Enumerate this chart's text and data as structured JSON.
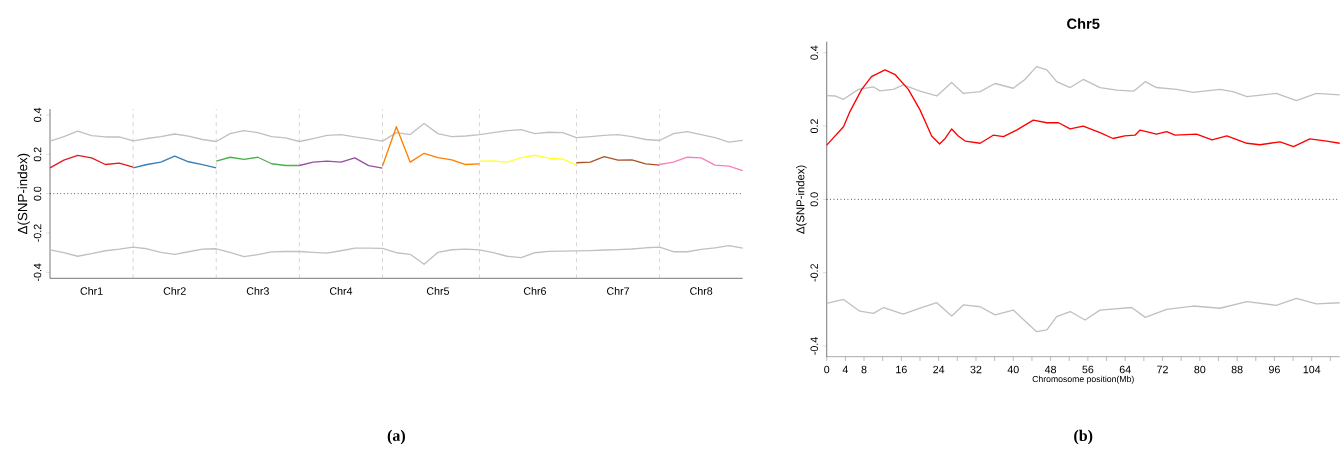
{
  "chart_data": [
    {
      "type": "line",
      "ylabel": "Δ(SNP-index)",
      "ylim": [
        -0.43,
        0.43
      ],
      "categories": [
        null,
        null,
        null,
        "Chr1",
        null,
        null,
        null,
        null,
        null,
        "Chr2",
        null,
        null,
        null,
        null,
        null,
        "Chr3",
        null,
        null,
        null,
        null,
        null,
        "Chr4",
        null,
        null,
        null,
        null,
        null,
        null,
        "Chr5",
        null,
        null,
        null,
        null,
        null,
        null,
        "Chr6",
        null,
        null,
        null,
        null,
        null,
        "Chr7",
        null,
        null,
        null,
        null,
        null,
        "Chr8",
        null,
        null,
        null
      ],
      "yticks": [
        {
          "value": -0.4,
          "label": "-0.4"
        },
        {
          "value": -0.2,
          "label": "-0.2"
        },
        {
          "value": 0,
          "label": "0.0"
        },
        {
          "value": 0.2,
          "label": "0.2"
        },
        {
          "value": 0.4,
          "label": "0.4"
        }
      ],
      "series": [
        {
          "color": "#c0c0c0",
          "values": [
            0.267,
            0.29,
            0.318,
            0.295,
            0.288,
            0.288,
            0.268,
            0.28,
            0.29,
            0.303,
            0.292,
            0.275,
            0.265,
            0.305,
            0.32,
            0.31,
            0.29,
            0.283,
            0.265,
            0.28,
            0.296,
            0.3,
            0.288,
            0.278,
            0.267,
            0.31,
            0.3,
            0.356,
            0.305,
            0.29,
            0.293,
            0.3,
            0.31,
            0.32,
            0.325,
            0.305,
            0.312,
            0.31,
            0.285,
            0.29,
            0.296,
            0.3,
            0.29,
            0.275,
            0.27,
            0.305,
            0.315,
            0.3,
            0.285,
            0.262,
            0.271
          ]
        },
        {
          "color": "#c0c0c0",
          "values": [
            -0.286,
            -0.3,
            -0.318,
            -0.305,
            -0.29,
            -0.282,
            -0.272,
            -0.28,
            -0.298,
            -0.308,
            -0.295,
            -0.282,
            -0.28,
            -0.298,
            -0.32,
            -0.31,
            -0.296,
            -0.294,
            -0.294,
            -0.298,
            -0.302,
            -0.29,
            -0.277,
            -0.277,
            -0.278,
            -0.3,
            -0.308,
            -0.359,
            -0.298,
            -0.285,
            -0.282,
            -0.286,
            -0.3,
            -0.318,
            -0.325,
            -0.3,
            -0.293,
            -0.292,
            -0.291,
            -0.289,
            -0.286,
            -0.284,
            -0.281,
            -0.275,
            -0.272,
            -0.295,
            -0.295,
            -0.283,
            -0.275,
            -0.264,
            -0.277
          ]
        },
        {
          "color": "#e41a1c",
          "values": [
            0.131,
            0.17,
            0.194,
            0.182,
            0.148,
            0.155,
            0.135,
            null,
            null,
            null,
            null,
            null,
            null,
            null,
            null,
            null,
            null,
            null,
            null,
            null,
            null,
            null,
            null,
            null,
            null,
            null,
            null,
            null,
            null,
            null,
            null,
            null,
            null,
            null,
            null,
            null,
            null,
            null,
            null,
            null,
            null,
            null,
            null,
            null,
            null,
            null,
            null,
            null,
            null,
            null,
            null
          ]
        },
        {
          "color": "#377eb8",
          "values": [
            null,
            null,
            null,
            null,
            null,
            null,
            0.131,
            0.148,
            0.16,
            0.191,
            0.162,
            0.147,
            0.131,
            null,
            null,
            null,
            null,
            null,
            null,
            null,
            null,
            null,
            null,
            null,
            null,
            null,
            null,
            null,
            null,
            null,
            null,
            null,
            null,
            null,
            null,
            null,
            null,
            null,
            null,
            null,
            null,
            null,
            null,
            null,
            null,
            null,
            null,
            null,
            null,
            null,
            null
          ]
        },
        {
          "color": "#4daf4a",
          "values": [
            null,
            null,
            null,
            null,
            null,
            null,
            null,
            null,
            null,
            null,
            null,
            null,
            0.165,
            0.185,
            0.174,
            0.185,
            0.152,
            0.143,
            0.143,
            null,
            null,
            null,
            null,
            null,
            null,
            null,
            null,
            null,
            null,
            null,
            null,
            null,
            null,
            null,
            null,
            null,
            null,
            null,
            null,
            null,
            null,
            null,
            null,
            null,
            null,
            null,
            null,
            null,
            null,
            null,
            null
          ]
        },
        {
          "color": "#984ea3",
          "values": [
            null,
            null,
            null,
            null,
            null,
            null,
            null,
            null,
            null,
            null,
            null,
            null,
            null,
            null,
            null,
            null,
            null,
            null,
            0.143,
            0.16,
            0.165,
            0.16,
            0.182,
            0.142,
            0.13,
            null,
            null,
            null,
            null,
            null,
            null,
            null,
            null,
            null,
            null,
            null,
            null,
            null,
            null,
            null,
            null,
            null,
            null,
            null,
            null,
            null,
            null,
            null,
            null,
            null,
            null
          ]
        },
        {
          "color": "#ff7f00",
          "values": [
            null,
            null,
            null,
            null,
            null,
            null,
            null,
            null,
            null,
            null,
            null,
            null,
            null,
            null,
            null,
            null,
            null,
            null,
            null,
            null,
            null,
            null,
            null,
            null,
            0.14,
            0.34,
            0.16,
            0.205,
            0.183,
            0.172,
            0.148,
            0.151,
            null,
            null,
            null,
            null,
            null,
            null,
            null,
            null,
            null,
            null,
            null,
            null,
            null,
            null,
            null,
            null,
            null,
            null,
            null
          ]
        },
        {
          "color": "#ffff33",
          "values": [
            null,
            null,
            null,
            null,
            null,
            null,
            null,
            null,
            null,
            null,
            null,
            null,
            null,
            null,
            null,
            null,
            null,
            null,
            null,
            null,
            null,
            null,
            null,
            null,
            null,
            null,
            null,
            null,
            null,
            null,
            null,
            0.165,
            0.166,
            0.16,
            0.183,
            0.195,
            0.18,
            0.176,
            0.145,
            null,
            null,
            null,
            null,
            null,
            null,
            null,
            null,
            null,
            null,
            null,
            null
          ]
        },
        {
          "color": "#a65628",
          "values": [
            null,
            null,
            null,
            null,
            null,
            null,
            null,
            null,
            null,
            null,
            null,
            null,
            null,
            null,
            null,
            null,
            null,
            null,
            null,
            null,
            null,
            null,
            null,
            null,
            null,
            null,
            null,
            null,
            null,
            null,
            null,
            null,
            null,
            null,
            null,
            null,
            null,
            null,
            0.157,
            0.16,
            0.188,
            0.17,
            0.172,
            0.151,
            0.145,
            null,
            null,
            null,
            null,
            null,
            null
          ]
        },
        {
          "color": "#f781bf",
          "values": [
            null,
            null,
            null,
            null,
            null,
            null,
            null,
            null,
            null,
            null,
            null,
            null,
            null,
            null,
            null,
            null,
            null,
            null,
            null,
            null,
            null,
            null,
            null,
            null,
            null,
            null,
            null,
            null,
            null,
            null,
            null,
            null,
            null,
            null,
            null,
            null,
            null,
            null,
            null,
            null,
            null,
            null,
            null,
            null,
            0.148,
            0.16,
            0.185,
            0.182,
            0.145,
            0.14,
            0.117
          ]
        }
      ],
      "grid": "x",
      "ref_lines": [
        {
          "axis": "y",
          "value": 0,
          "color": "#000000",
          "line_style": "dotted"
        }
      ],
      "annotations": [
        "(a)"
      ]
    },
    {
      "type": "line",
      "title": "Chr5",
      "xlabel": "Chromosome position(Mb)",
      "ylabel": "Δ(SNP-index)",
      "xlim": [
        0,
        110
      ],
      "ylim": [
        -0.43,
        0.43
      ],
      "xticks": [
        0,
        4,
        8,
        {
          "value": 12,
          "label": null
        },
        16,
        {
          "value": 20,
          "label": null
        },
        24,
        {
          "value": 28,
          "label": null
        },
        32,
        {
          "value": 36,
          "label": null
        },
        40,
        {
          "value": 44,
          "label": null
        },
        48,
        {
          "value": 52,
          "label": null
        },
        56,
        {
          "value": 60,
          "label": null
        },
        64,
        {
          "value": 68,
          "label": null
        },
        72,
        {
          "value": 76,
          "label": null
        },
        80,
        {
          "value": 84,
          "label": null
        },
        88,
        {
          "value": 92,
          "label": null
        },
        96,
        {
          "value": 100,
          "label": null
        },
        104,
        {
          "value": 108,
          "label": null
        }
      ],
      "yticks": [
        {
          "value": -0.4,
          "label": "-0.4"
        },
        {
          "value": -0.2,
          "label": "-0.2"
        },
        {
          "value": 0,
          "label": "0.0"
        },
        {
          "value": 0.2,
          "label": "0.2"
        },
        {
          "value": 0.4,
          "label": "0.4"
        }
      ],
      "series": [
        {
          "color": "#c0c0c0",
          "x": [
            0,
            1.8,
            3.6,
            6.8,
            10,
            11.4,
            14.3,
            16.4,
            20,
            23.6,
            26.8,
            29.3,
            32.9,
            36.1,
            40,
            42.5,
            45,
            47.2,
            49.3,
            52.2,
            55.0,
            58.6,
            62.2,
            65.8,
            68.3,
            70.7,
            75.0,
            78.6,
            81.4,
            84.3,
            87.1,
            90.1,
            93.6,
            96.4,
            100.7,
            105.0,
            110
          ],
          "values": [
            0.283,
            0.282,
            0.273,
            0.3,
            0.307,
            0.296,
            0.3,
            0.312,
            0.295,
            0.282,
            0.319,
            0.289,
            0.294,
            0.316,
            0.303,
            0.327,
            0.362,
            0.353,
            0.321,
            0.305,
            0.327,
            0.305,
            0.298,
            0.295,
            0.321,
            0.305,
            0.3,
            0.292,
            0.296,
            0.3,
            0.294,
            0.28,
            0.285,
            0.289,
            0.269,
            0.289,
            0.285
          ]
        },
        {
          "color": "#c0c0c0",
          "x": [
            0,
            3.6,
            7.1,
            10,
            12.2,
            16.4,
            20,
            23.6,
            26.8,
            29.3,
            32.9,
            36.1,
            40,
            45,
            47.2,
            49.3,
            52.2,
            55.4,
            58.6,
            65.4,
            68.3,
            72.9,
            78.6,
            84.3,
            90.1,
            96.4,
            100.7,
            105,
            110
          ],
          "values": [
            -0.284,
            -0.273,
            -0.305,
            -0.311,
            -0.295,
            -0.313,
            -0.297,
            -0.282,
            -0.318,
            -0.288,
            -0.293,
            -0.315,
            -0.302,
            -0.361,
            -0.356,
            -0.32,
            -0.306,
            -0.329,
            -0.302,
            -0.295,
            -0.322,
            -0.3,
            -0.291,
            -0.297,
            -0.279,
            -0.289,
            -0.27,
            -0.285,
            -0.282
          ]
        },
        {
          "color": "#ff0000",
          "x": [
            0,
            3.6,
            5,
            7.5,
            9.6,
            12.5,
            14.7,
            17.5,
            20,
            22.5,
            24.2,
            25.4,
            26.8,
            28.2,
            29.7,
            32.9,
            35.7,
            37.9,
            40.7,
            44.3,
            47.2,
            49.7,
            52.2,
            55.0,
            58.6,
            61.4,
            63.9,
            66.1,
            67.2,
            70.7,
            72.9,
            74.7,
            79.3,
            82.6,
            85.8,
            90.1,
            92.9,
            97.2,
            100.1,
            103.6,
            107.2,
            110
          ],
          "values": [
            0.148,
            0.198,
            0.24,
            0.3,
            0.335,
            0.353,
            0.34,
            0.3,
            0.244,
            0.173,
            0.151,
            0.166,
            0.192,
            0.173,
            0.159,
            0.153,
            0.175,
            0.171,
            0.189,
            0.216,
            0.209,
            0.209,
            0.192,
            0.2,
            0.182,
            0.166,
            0.173,
            0.175,
            0.189,
            0.178,
            0.185,
            0.175,
            0.178,
            0.162,
            0.173,
            0.153,
            0.149,
            0.157,
            0.144,
            0.165,
            0.159,
            0.153
          ]
        }
      ],
      "ref_lines": [
        {
          "axis": "y",
          "value": 0,
          "color": "#000000",
          "line_style": "dotted"
        }
      ],
      "annotations": [
        "(b)"
      ]
    }
  ]
}
